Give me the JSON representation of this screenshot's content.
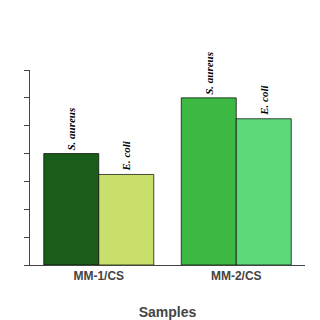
{
  "chart_data": {
    "type": "bar",
    "categories": [
      "MM-1/CS",
      "MM-2/CS"
    ],
    "series": [
      {
        "name": "S. aureus",
        "colors": [
          "#1a5c1a",
          "#3cb843"
        ],
        "values": [
          16,
          24
        ]
      },
      {
        "name": "E. coli",
        "colors": [
          "#c8e06b",
          "#5fd87a"
        ],
        "values": [
          13,
          21
        ]
      }
    ],
    "x_label": "Samples",
    "ylim": [
      0,
      28
    ],
    "yticks": [
      0,
      4,
      8,
      12,
      16,
      20,
      24,
      28
    ],
    "tick_labels": "x",
    "grid": false,
    "data_labels": false
  }
}
